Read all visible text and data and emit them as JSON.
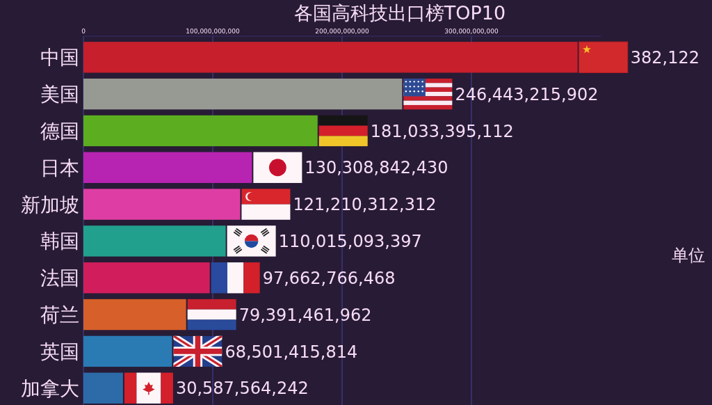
{
  "chart_data": {
    "type": "bar",
    "orientation": "horizontal",
    "title": "各国高科技出口榜TOP10",
    "categories": [
      "中国",
      "美国",
      "德国",
      "日本",
      "新加坡",
      "韩国",
      "法国",
      "荷兰",
      "英国",
      "加拿大"
    ],
    "values": [
      382122000000,
      246443215902,
      181033395112,
      130308842430,
      121210312312,
      110015093397,
      97662766468,
      79391461962,
      68501415814,
      30587564242
    ],
    "colors": [
      "#c71f2c",
      "#979a93",
      "#5cae20",
      "#b824b2",
      "#de3ea4",
      "#22a08e",
      "#d21d5c",
      "#d65f2a",
      "#2a7ab4",
      "#2c6aa8"
    ],
    "value_labels": [
      null,
      "246,443,215,902",
      "181,033,395,112",
      "130,308,842,430",
      "121,210,312,312",
      "110,015,093,397",
      "97,662,766,468",
      "79,391,461,962",
      "68,501,415,814",
      "30,587,564,242"
    ],
    "xlim": [
      0,
      400000000000
    ],
    "xticks": [
      0,
      {
        "value": 100000000000,
        "label": "100,000,000,000"
      },
      {
        "value": 200000000000,
        "label": "200,000,000,000"
      },
      {
        "value": 300000000000,
        "label": "300,000,000,000"
      }
    ],
    "grid": "x",
    "annotations": [
      "382,122",
      "单位"
    ]
  }
}
